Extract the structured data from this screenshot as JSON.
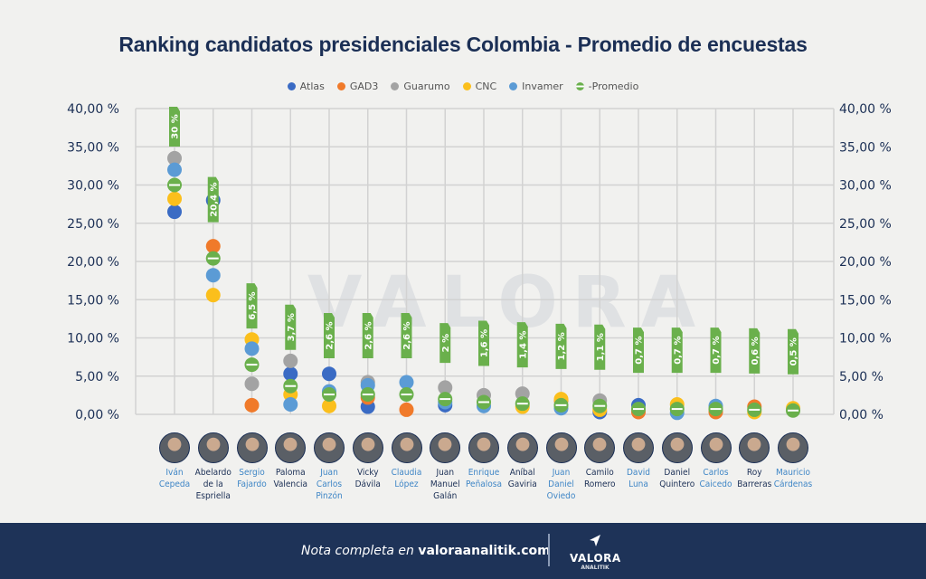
{
  "title": "Ranking candidatos presidenciales Colombia - Promedio de encuestas",
  "colors": {
    "title": "#1b2f55",
    "footer_bg": "#1e3358",
    "name_blue": "#3f86c6",
    "name_dark": "#1b2f55"
  },
  "chart_data": {
    "type": "scatter",
    "title": "Ranking candidatos presidenciales Colombia - Promedio de encuestas",
    "ylim": [
      0,
      40
    ],
    "yticks": [
      "0,00 %",
      "5,00 %",
      "10,00 %",
      "15,00 %",
      "20,00 %",
      "25,00 %",
      "30,00 %",
      "35,00 %",
      "40,00 %"
    ],
    "ytick_values": [
      0,
      5,
      10,
      15,
      20,
      25,
      30,
      35,
      40
    ],
    "grid": true,
    "legend_position": "top-center",
    "series": [
      {
        "name": "Atlas",
        "color": "#3a6bc4"
      },
      {
        "name": "GAD3",
        "color": "#f07a2a"
      },
      {
        "name": "Guarumo",
        "color": "#a3a3a3"
      },
      {
        "name": "CNC",
        "color": "#fbbf1c"
      },
      {
        "name": "Invamer",
        "color": "#5b9bd5"
      },
      {
        "name": "Promedio",
        "color": "#6ab04c"
      }
    ],
    "candidates": [
      {
        "name": [
          "Iván",
          "Cepeda"
        ],
        "blue": true,
        "avg_label": "30 %",
        "values": {
          "Guarumo": 33.5,
          "Invamer": 32,
          "Promedio": 30,
          "CNC": 28.2,
          "Atlas": 26.5
        }
      },
      {
        "name": [
          "Abelardo",
          "de la",
          "Espriella"
        ],
        "blue": false,
        "avg_label": "20,4 %",
        "values": {
          "Atlas": 28,
          "GAD3": 22,
          "Promedio": 20.4,
          "Invamer": 18.2,
          "CNC": 15.6
        }
      },
      {
        "name": [
          "Sergio",
          "Fajardo"
        ],
        "blue": true,
        "avg_label": "6,5 %",
        "values": {
          "CNC": 9.8,
          "Invamer": 8.6,
          "Promedio": 6.5,
          "Guarumo": 4,
          "GAD3": 1.2
        }
      },
      {
        "name": [
          "Paloma",
          "Valencia"
        ],
        "blue": false,
        "avg_label": "3,7 %",
        "values": {
          "Guarumo": 7,
          "Atlas": 5.3,
          "CNC": 2.6,
          "Promedio": 3.7,
          "Invamer": 1.3
        }
      },
      {
        "name": [
          "Juan",
          "Carlos",
          "Pinzón"
        ],
        "blue": true,
        "avg_label": "2,6 %",
        "values": {
          "Atlas": 5.3,
          "Invamer": 3,
          "Promedio": 2.6,
          "CNC": 1.1
        }
      },
      {
        "name": [
          "Vicky",
          "Dávila"
        ],
        "blue": false,
        "avg_label": "2,6 %",
        "values": {
          "Guarumo": 4.2,
          "Invamer": 3.8,
          "GAD3": 2.2,
          "Promedio": 2.6,
          "Atlas": 1
        }
      },
      {
        "name": [
          "Claudia",
          "López"
        ],
        "blue": true,
        "avg_label": "2,6 %",
        "values": {
          "Invamer": 4.2,
          "Promedio": 2.6,
          "GAD3": 0.6
        }
      },
      {
        "name": [
          "Juan",
          "Manuel",
          "Galán"
        ],
        "blue": false,
        "avg_label": "2 %",
        "values": {
          "Guarumo": 3.5,
          "Invamer": 1.6,
          "Promedio": 2,
          "Atlas": 1.2
        }
      },
      {
        "name": [
          "Enrique",
          "Peñalosa"
        ],
        "blue": true,
        "avg_label": "1,6 %",
        "values": {
          "Guarumo": 2.5,
          "Invamer": 1.1,
          "Promedio": 1.6
        }
      },
      {
        "name": [
          "Aníbal",
          "Gaviria"
        ],
        "blue": false,
        "avg_label": "1,4 %",
        "values": {
          "Guarumo": 2.7,
          "CNC": 1,
          "Promedio": 1.4
        }
      },
      {
        "name": [
          "Juan",
          "Daniel",
          "Oviedo"
        ],
        "blue": true,
        "avg_label": "1,2 %",
        "values": {
          "CNC": 2,
          "GAD3": 1.8,
          "Invamer": 0.8,
          "Promedio": 1.2
        }
      },
      {
        "name": [
          "Camilo",
          "Romero"
        ],
        "blue": false,
        "avg_label": "1,1 %",
        "values": {
          "Guarumo": 1.8,
          "CNC": 0.6,
          "Atlas": 0.3,
          "Promedio": 1.1
        }
      },
      {
        "name": [
          "David",
          "Luna"
        ],
        "blue": true,
        "avg_label": "0,7 %",
        "values": {
          "Atlas": 1.2,
          "GAD3": 0.3,
          "Promedio": 0.7
        }
      },
      {
        "name": [
          "Daniel",
          "Quintero"
        ],
        "blue": false,
        "avg_label": "0,7 %",
        "values": {
          "CNC": 1.3,
          "Invamer": 0.2,
          "Promedio": 0.7
        }
      },
      {
        "name": [
          "Carlos",
          "Caicedo"
        ],
        "blue": true,
        "avg_label": "0,7 %",
        "values": {
          "Invamer": 1.1,
          "GAD3": 0.3,
          "Promedio": 0.7
        }
      },
      {
        "name": [
          "Roy",
          "Barreras"
        ],
        "blue": false,
        "avg_label": "0,6 %",
        "values": {
          "GAD3": 1,
          "CNC": 0.3,
          "Promedio": 0.6
        }
      },
      {
        "name": [
          "Mauricio",
          "Cárdenas"
        ],
        "blue": true,
        "avg_label": "0,5 %",
        "values": {
          "CNC": 0.8,
          "Promedio": 0.5
        }
      }
    ]
  },
  "watermark": "VALORA",
  "footer": {
    "note_prefix": "Nota completa en ",
    "note_link": "valoraanalitik.com",
    "logo_word": "VALORA",
    "logo_sub": "ANALITIK"
  }
}
